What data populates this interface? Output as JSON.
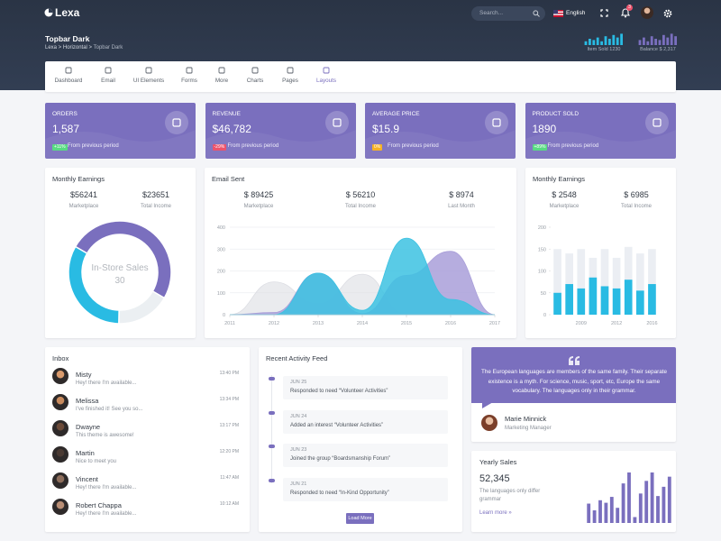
{
  "topbar": {
    "brand": "Lexa",
    "search_placeholder": "Search...",
    "language": "English",
    "notification_count": "3",
    "page_title": "Topbar Dark",
    "breadcrumb": [
      "Lexa",
      "Horizontal",
      "Topbar Dark"
    ],
    "stats": [
      {
        "label": "Item Sold 1230",
        "color": "#29bbe3",
        "ylim": [
          0,
          10
        ],
        "bars": [
          3,
          5,
          4,
          6,
          3,
          7,
          5,
          8,
          6,
          9
        ]
      },
      {
        "label": "Balance $ 2,317",
        "color": "#7a6fbe",
        "ylim": [
          0,
          10
        ],
        "bars": [
          4,
          6,
          3,
          7,
          5,
          4,
          8,
          6,
          9,
          7
        ]
      }
    ]
  },
  "nav": [
    "Dashboard",
    "Email",
    "UI Elements",
    "Forms",
    "More",
    "Charts",
    "Pages",
    "Layouts"
  ],
  "cards": [
    {
      "title": "ORDERS",
      "value": "1,587",
      "badge": "+11%",
      "badge_color": "#58db83",
      "note": "From previous period"
    },
    {
      "title": "REVENUE",
      "value": "$46,782",
      "badge": "-29%",
      "badge_color": "#ec536c",
      "note": "From previous period"
    },
    {
      "title": "AVERAGE PRICE",
      "value": "$15.9",
      "badge": "0%",
      "badge_color": "#f5b225",
      "note": "From previous period"
    },
    {
      "title": "PRODUCT SOLD",
      "value": "1890",
      "badge": "+89%",
      "badge_color": "#58db83",
      "note": "From previous period"
    }
  ],
  "monthly_earnings": {
    "title": "Monthly Earnings",
    "stats": [
      {
        "value": "$56241",
        "label": "Marketplace"
      },
      {
        "value": "$23651",
        "label": "Total Income"
      }
    ],
    "chart": {
      "type": "donut",
      "center_label": "In-Store Sales",
      "center_value": "30",
      "values": [
        50,
        17,
        33
      ],
      "colors": [
        "#7a6fbe",
        "#ebeff2",
        "#29bbe3"
      ]
    }
  },
  "email_sent": {
    "title": "Email Sent",
    "stats": [
      {
        "value": "$ 89425",
        "label": "Marketplace"
      },
      {
        "value": "$ 56210",
        "label": "Total Income"
      },
      {
        "value": "$ 8974",
        "label": "Last Month"
      }
    ],
    "chart": {
      "type": "area",
      "x": [
        2011,
        2012,
        2013,
        2014,
        2015,
        2016,
        2017
      ],
      "xlim": [
        2011,
        2017
      ],
      "xticks": [
        2011,
        2012,
        2013,
        2014,
        2015,
        2016,
        2017
      ],
      "ylim": [
        0,
        400
      ],
      "yticks": [
        0,
        100,
        200,
        300,
        400
      ],
      "grid": true,
      "series": [
        {
          "color": "#dcdde3",
          "values": [
            0,
            150,
            50,
            185,
            0,
            0,
            0
          ]
        },
        {
          "color": "#a99fd9",
          "values": [
            0,
            10,
            190,
            5,
            180,
            290,
            0
          ]
        },
        {
          "color": "#3cc2e2",
          "values": [
            0,
            0,
            190,
            20,
            350,
            70,
            0
          ]
        }
      ]
    }
  },
  "monthly_earnings_2": {
    "title": "Monthly Earnings",
    "stats": [
      {
        "value": "$ 2548",
        "label": "Marketplace"
      },
      {
        "value": "$ 6985",
        "label": "Total Income"
      }
    ],
    "chart": {
      "type": "bar",
      "categories": [
        null,
        null,
        "2009",
        null,
        null,
        "2012",
        null,
        null,
        "2016"
      ],
      "ylim": [
        0,
        200
      ],
      "yticks": [
        0,
        50,
        100,
        150,
        200
      ],
      "series": [
        {
          "color": "#ebeef3",
          "values": [
            150,
            140,
            150,
            130,
            150,
            130,
            155,
            140,
            150
          ]
        },
        {
          "color": "#29bbe3",
          "values": [
            50,
            70,
            60,
            85,
            65,
            60,
            80,
            55,
            70
          ]
        }
      ]
    }
  },
  "inbox": {
    "title": "Inbox",
    "messages": [
      {
        "name": "Misty",
        "text": "Hey! there I'm available...",
        "time": "13:40 PM"
      },
      {
        "name": "Melissa",
        "text": "I've finished it! See you so...",
        "time": "13:34 PM"
      },
      {
        "name": "Dwayne",
        "text": "This theme is awesome!",
        "time": "13:17 PM"
      },
      {
        "name": "Martin",
        "text": "Nice to meet you",
        "time": "12:20 PM"
      },
      {
        "name": "Vincent",
        "text": "Hey! there I'm available...",
        "time": "11:47 AM"
      },
      {
        "name": "Robert Chappa",
        "text": "Hey! there I'm available...",
        "time": "10:12 AM"
      }
    ]
  },
  "activity": {
    "title": "Recent Activity Feed",
    "items": [
      {
        "date": "JUN 25",
        "text": "Responded to need “Volunteer Activities”"
      },
      {
        "date": "JUN 24",
        "text": "Added an interest “Volunteer Activities”"
      },
      {
        "date": "JUN 23",
        "text": "Joined the group “Boardsmanship Forum”"
      },
      {
        "date": "JUN 21",
        "text": "Responded to need “In-Kind Opportunity”"
      }
    ],
    "button": "Load More"
  },
  "testimonial": {
    "quote": "The European languages are members of the same family. Their separate existence is a myth. For science, music, sport, etc, Europe the same vocabulary. The languages only in their grammar.",
    "name": "Marie Minnick",
    "role": "Marketing Manager"
  },
  "yearly_sales": {
    "title": "Yearly Sales",
    "value": "52,345",
    "text": "The languages only differ grammar",
    "link": "Learn more »",
    "chart": {
      "type": "bar",
      "color": "#7a6fbe",
      "ylim": [
        0,
        60
      ],
      "values": [
        23,
        15,
        27,
        24,
        31,
        18,
        47,
        60,
        7,
        35,
        50,
        60,
        32,
        43,
        55
      ]
    }
  }
}
